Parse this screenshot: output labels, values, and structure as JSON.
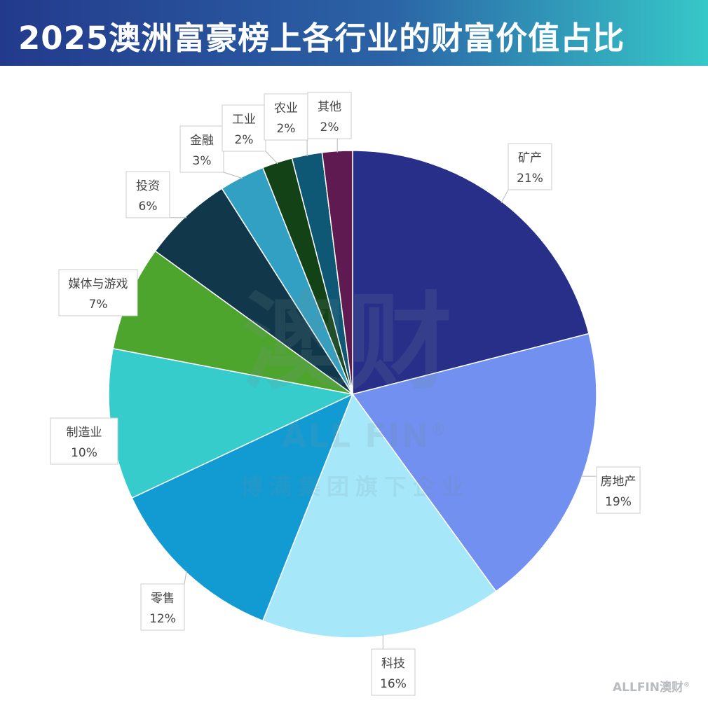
{
  "header": {
    "title": "2025澳洲富豪榜上各行业的财富价值占比"
  },
  "watermark": {
    "main": "澳财",
    "brand": "ALL FIN",
    "registered": "®",
    "tagline": "博满集团旗下企业"
  },
  "footer_logo": {
    "text": "ALLFIN澳财",
    "registered": "®"
  },
  "chart_data": {
    "type": "pie",
    "title": "2025澳洲富豪榜上各行业的财富价值占比",
    "unit": "%",
    "slices": [
      {
        "label": "矿产",
        "value": 21,
        "value_label": "21%",
        "color": "#282f88"
      },
      {
        "label": "房地产",
        "value": 19,
        "value_label": "19%",
        "color": "#7190f0"
      },
      {
        "label": "科技",
        "value": 16,
        "value_label": "16%",
        "color": "#a6e8fa"
      },
      {
        "label": "零售",
        "value": 12,
        "value_label": "12%",
        "color": "#129bd3"
      },
      {
        "label": "制造业",
        "value": 10,
        "value_label": "10%",
        "color": "#35cccb"
      },
      {
        "label": "媒体与游戏",
        "value": 7,
        "value_label": "7%",
        "color": "#4ea52d"
      },
      {
        "label": "投资",
        "value": 6,
        "value_label": "6%",
        "color": "#11384a"
      },
      {
        "label": "金融",
        "value": 3,
        "value_label": "3%",
        "color": "#32a0c3"
      },
      {
        "label": "工业",
        "value": 2,
        "value_label": "2%",
        "color": "#134217"
      },
      {
        "label": "农业",
        "value": 2,
        "value_label": "2%",
        "color": "#0e5875"
      },
      {
        "label": "其他",
        "value": 2,
        "value_label": "2%",
        "color": "#601a52"
      }
    ]
  }
}
